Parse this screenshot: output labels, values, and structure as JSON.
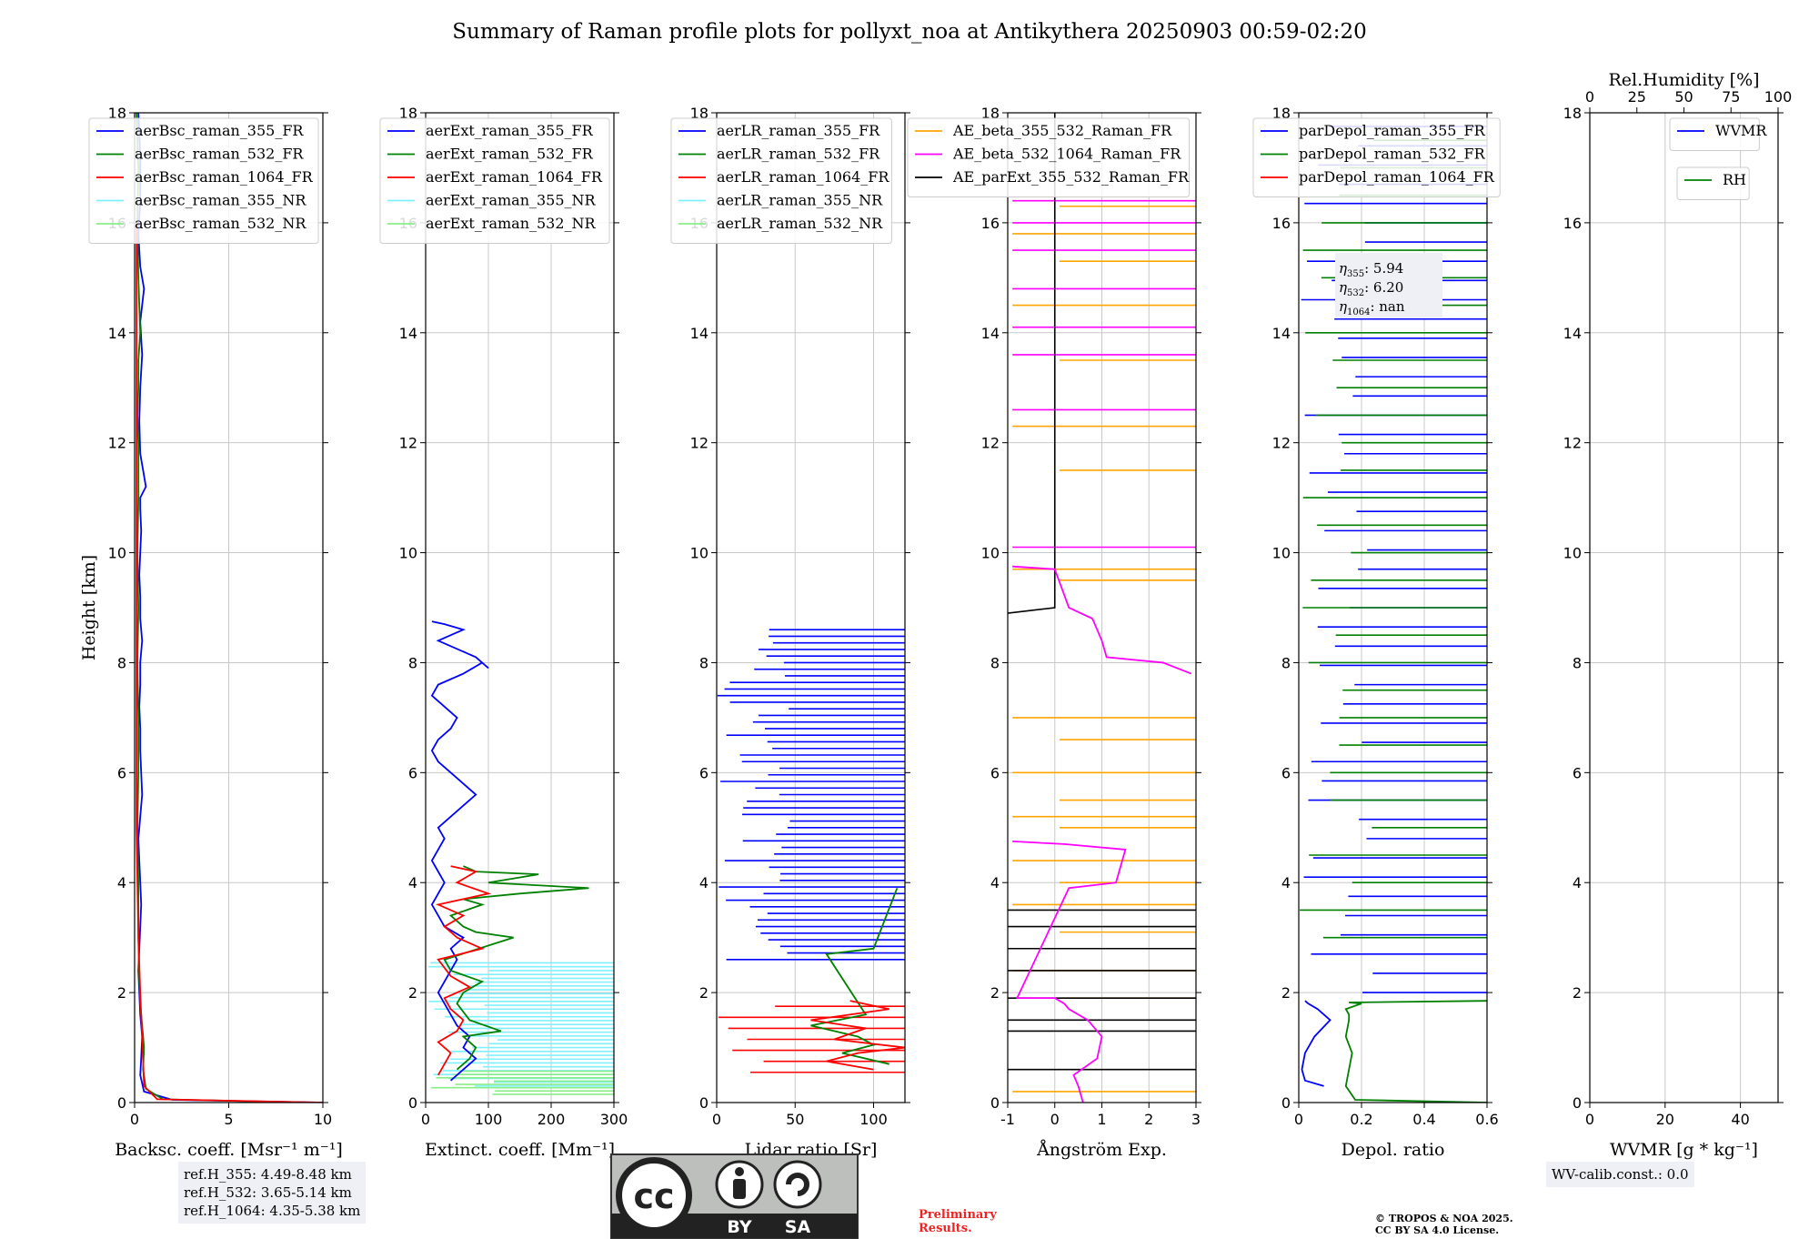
{
  "title": "Summary of Raman profile plots for pollyxt_noa at Antikythera 20250903 00:59-02:20",
  "ylabel": "Height [km]",
  "colors": {
    "blue": "#0000ff",
    "green": "#008000",
    "red": "#ff0000",
    "cyan": "#7ff0ff",
    "lightgreen": "#88ee88",
    "orange": "#ffa500",
    "magenta": "#ff00ff",
    "black": "#000000",
    "grid": "#c8c8c8"
  },
  "ref_heights": [
    "ref.H_355: 4.49-8.48 km",
    "ref.H_532: 3.65-5.14 km",
    "ref.H_1064: 4.35-5.38 km"
  ],
  "depol_annot": [
    {
      "label": "η",
      "sub": "355",
      "value": ": 5.94"
    },
    {
      "label": "η",
      "sub": "532",
      "value": ": 6.20"
    },
    {
      "label": "η",
      "sub": "1064",
      "value": ": nan"
    }
  ],
  "wv_calib": "WV-calib.const.: 0.0",
  "license": {
    "cc": "cc",
    "by": "BY",
    "sa": "SA"
  },
  "preliminary": [
    "Preliminary",
    "Results."
  ],
  "copyright": [
    "© TROPOS & NOA 2025.",
    "CC BY SA 4.0 License."
  ],
  "chart_data": [
    {
      "id": "backscatter",
      "type": "line",
      "xlabel": "Backsc. coeff. [Msr⁻¹ m⁻¹]",
      "xlim": [
        0,
        10
      ],
      "xticks": [
        0,
        5,
        10
      ],
      "ylim": [
        0,
        18
      ],
      "yticks": [
        0,
        2,
        4,
        6,
        8,
        10,
        12,
        14,
        16,
        18
      ],
      "legend": [
        "aerBsc_raman_355_FR",
        "aerBsc_raman_532_FR",
        "aerBsc_raman_1064_FR",
        "aerBsc_raman_355_NR",
        "aerBsc_raman_532_NR"
      ],
      "legend_colors": [
        "blue",
        "green",
        "red",
        "cyan",
        "lightgreen"
      ],
      "series": [
        {
          "name": "aerBsc_raman_355_FR",
          "color": "blue",
          "x": [
            10,
            2.0,
            0.5,
            0.3,
            0.35,
            0.4,
            0.3,
            0.25,
            0.2,
            0.25,
            0.3,
            0.35,
            0.3,
            0.25,
            0.2,
            0.3,
            0.4,
            0.35,
            0.3,
            0.3,
            0.25,
            0.3,
            0.3,
            0.4,
            0.3,
            0.3,
            0.25,
            0.3,
            0.35,
            0.3,
            0.3,
            0.6,
            0.5,
            0.3,
            0.25,
            0.3,
            0.4,
            0.3,
            0.5,
            0.3,
            0.2,
            0.3,
            0.3,
            0.2
          ],
          "y": [
            0.0,
            0.05,
            0.2,
            0.5,
            0.8,
            1.2,
            1.6,
            2.0,
            2.4,
            2.8,
            3.2,
            3.6,
            4.0,
            4.4,
            4.8,
            5.2,
            5.6,
            6.0,
            6.4,
            6.8,
            7.2,
            7.6,
            8.0,
            8.4,
            8.8,
            9.2,
            9.6,
            10.0,
            10.4,
            10.8,
            11.0,
            11.2,
            11.4,
            11.8,
            12.4,
            13.0,
            13.6,
            14.2,
            14.8,
            15.2,
            15.8,
            16.4,
            17.2,
            18.0
          ]
        },
        {
          "name": "aerBsc_raman_532_FR",
          "color": "green",
          "x": [
            9,
            1.5,
            0.6,
            0.45,
            0.5,
            0.4,
            0.3,
            0.25,
            0.2,
            0.2,
            0.15,
            0.2,
            0.2,
            0.15,
            0.2,
            0.15,
            0.2,
            0.2,
            0.15,
            0.2,
            0.2,
            0.3,
            0.2,
            0.15,
            0.2,
            0.1
          ],
          "y": [
            0.0,
            0.06,
            0.25,
            0.6,
            1.0,
            1.4,
            1.8,
            2.2,
            3.0,
            4.0,
            5.0,
            6.0,
            7.0,
            8.0,
            9.0,
            10.0,
            11.0,
            12.0,
            12.5,
            13.0,
            13.5,
            14.0,
            15.0,
            16.0,
            17.0,
            18.0
          ]
        },
        {
          "name": "aerBsc_raman_1064_FR",
          "color": "red",
          "x": [
            10,
            1.2,
            0.5,
            0.45,
            0.4,
            0.35,
            0.3,
            0.2,
            0.15,
            0.1,
            0.1,
            0.1,
            0.1,
            0.1,
            0.1,
            0.1
          ],
          "y": [
            0.0,
            0.06,
            0.3,
            0.8,
            1.2,
            1.6,
            2.0,
            3.0,
            4.0,
            5.0,
            6.0,
            8.0,
            10.0,
            12.0,
            14.0,
            16.0
          ]
        }
      ]
    },
    {
      "id": "extinction",
      "type": "line",
      "xlabel": "Extinct. coeff. [Mm⁻¹]",
      "xlim": [
        0,
        300
      ],
      "xticks": [
        0,
        100,
        200,
        300
      ],
      "ylim": [
        0,
        18
      ],
      "yticks": [
        0,
        2,
        4,
        6,
        8,
        10,
        12,
        14,
        16,
        18
      ],
      "legend": [
        "aerExt_raman_355_FR",
        "aerExt_raman_532_FR",
        "aerExt_raman_1064_FR",
        "aerExt_raman_355_NR",
        "aerExt_raman_532_NR"
      ],
      "legend_colors": [
        "blue",
        "green",
        "red",
        "cyan",
        "lightgreen"
      ],
      "series": [
        {
          "name": "aerExt_raman_355_FR",
          "color": "blue",
          "x": [
            40,
            60,
            80,
            60,
            70,
            50,
            40,
            30,
            20,
            30,
            40,
            50,
            40,
            60,
            30,
            20,
            10,
            20,
            30,
            20,
            10,
            20,
            30,
            20,
            40,
            60,
            80,
            60,
            40,
            20,
            10,
            20,
            40,
            50,
            30,
            10,
            20,
            60,
            90,
            100,
            80,
            60,
            40,
            20,
            40,
            60,
            30,
            10
          ],
          "y": [
            0.4,
            0.6,
            0.8,
            1.0,
            1.2,
            1.4,
            1.6,
            1.8,
            2.0,
            2.2,
            2.4,
            2.6,
            2.8,
            3.0,
            3.2,
            3.4,
            3.6,
            3.8,
            4.0,
            4.2,
            4.4,
            4.6,
            4.8,
            5.0,
            5.2,
            5.4,
            5.6,
            5.8,
            6.0,
            6.2,
            6.4,
            6.6,
            6.8,
            7.0,
            7.2,
            7.4,
            7.6,
            7.8,
            8.0,
            7.9,
            8.1,
            8.2,
            8.3,
            8.4,
            8.5,
            8.6,
            8.7,
            8.75
          ]
        },
        {
          "name": "aerExt_raman_532_FR",
          "color": "green",
          "x": [
            50,
            70,
            80,
            60,
            120,
            70,
            50,
            60,
            90,
            40,
            30,
            140,
            80,
            60,
            40,
            90,
            60,
            150,
            260,
            100,
            180,
            80,
            60
          ],
          "y": [
            0.6,
            0.8,
            1.0,
            1.2,
            1.3,
            1.5,
            1.8,
            2.0,
            2.2,
            2.4,
            2.6,
            3.0,
            3.1,
            3.2,
            3.4,
            3.6,
            3.7,
            3.8,
            3.9,
            4.0,
            4.15,
            4.2,
            4.3
          ]
        },
        {
          "name": "aerExt_raman_1064_FR",
          "color": "red",
          "x": [
            20,
            30,
            40,
            20,
            50,
            60,
            40,
            30,
            70,
            40,
            20,
            90,
            50,
            30,
            60,
            20,
            100,
            50,
            80,
            40
          ],
          "y": [
            0.5,
            0.7,
            0.9,
            1.1,
            1.3,
            1.5,
            1.7,
            1.9,
            2.1,
            2.3,
            2.6,
            2.8,
            3.0,
            3.2,
            3.4,
            3.6,
            3.8,
            4.0,
            4.2,
            4.3
          ]
        }
      ]
    },
    {
      "id": "lidar_ratio",
      "type": "line",
      "xlabel": "Lidar ratio [Sr]",
      "xlim": [
        0,
        120
      ],
      "xticks": [
        0,
        50,
        100
      ],
      "ylim": [
        0,
        18
      ],
      "yticks": [
        0,
        2,
        4,
        6,
        8,
        10,
        12,
        14,
        16,
        18
      ],
      "legend": [
        "aerLR_raman_355_FR",
        "aerLR_raman_532_FR",
        "aerLR_raman_1064_FR",
        "aerLR_raman_355_NR",
        "aerLR_raman_532_NR"
      ],
      "legend_colors": [
        "blue",
        "green",
        "red",
        "cyan",
        "lightgreen"
      ],
      "series": [
        {
          "name": "aerLR_raman_532_FR",
          "color": "green",
          "x": [
            110,
            80,
            100,
            90,
            60,
            95,
            70,
            100,
            115
          ],
          "y": [
            0.7,
            0.9,
            1.05,
            1.2,
            1.4,
            1.6,
            2.7,
            2.8,
            3.9
          ]
        },
        {
          "name": "aerLR_raman_1064_FR",
          "color": "red",
          "x": [
            100,
            70,
            90,
            120,
            75,
            95,
            60,
            110,
            85
          ],
          "y": [
            0.6,
            0.75,
            0.9,
            1.0,
            1.15,
            1.35,
            1.5,
            1.7,
            1.85
          ]
        }
      ]
    },
    {
      "id": "angstrom",
      "type": "line",
      "xlabel": "Ångström Exp.",
      "xlim": [
        -1,
        3
      ],
      "xticks": [
        -1,
        0,
        1,
        2,
        3
      ],
      "ylim": [
        0,
        18
      ],
      "yticks": [
        0,
        2,
        4,
        6,
        8,
        10,
        12,
        14,
        16,
        18
      ],
      "legend": [
        "AE_beta_355_532_Raman_FR",
        "AE_beta_532_1064_Raman_FR",
        "AE_parExt_355_532_Raman_FR"
      ],
      "legend_colors": [
        "orange",
        "magenta",
        "black"
      ],
      "series": [
        {
          "name": "AE_beta_532_1064_Raman_FR",
          "color": "magenta",
          "x": [
            0.6,
            0.5,
            0.4,
            0.9,
            1.0,
            0.7,
            0.3,
            0.2,
            0.0,
            -0.8,
            0.3,
            1.3,
            1.4,
            1.5,
            0.2,
            -0.9
          ],
          "y": [
            0.0,
            0.3,
            0.5,
            0.8,
            1.2,
            1.5,
            1.7,
            1.8,
            1.9,
            1.9,
            3.9,
            4.0,
            4.3,
            4.6,
            4.7,
            4.75
          ]
        },
        {
          "name": "AE_beta_532_1064_Raman_FR",
          "color": "magenta",
          "x": [
            2.9,
            2.3,
            1.1,
            1.0,
            0.9,
            0.8,
            0.3,
            0.0,
            -0.9
          ],
          "y": [
            7.8,
            8.0,
            8.1,
            8.4,
            8.6,
            8.8,
            9.0,
            9.7,
            9.75
          ]
        }
      ]
    },
    {
      "id": "depol",
      "type": "line",
      "xlabel": "Depol. ratio",
      "xlim": [
        0,
        0.6
      ],
      "xticks": [
        0.0,
        0.2,
        0.4,
        0.6
      ],
      "ylim": [
        0,
        18
      ],
      "yticks": [
        0,
        2,
        4,
        6,
        8,
        10,
        12,
        14,
        16,
        18
      ],
      "legend": [
        "parDepol_raman_355_FR",
        "parDepol_raman_532_FR",
        "parDepol_raman_1064_FR"
      ],
      "legend_colors": [
        "blue",
        "green",
        "red"
      ],
      "series": [
        {
          "name": "parDepol_raman_532_FR",
          "color": "green",
          "x": [
            0.6,
            0.18,
            0.15,
            0.16,
            0.17,
            0.15,
            0.16,
            0.16,
            0.15,
            0.2,
            0.16,
            0.6
          ],
          "y": [
            0.0,
            0.05,
            0.3,
            0.6,
            0.9,
            1.2,
            1.5,
            1.6,
            1.7,
            1.8,
            1.82,
            1.85
          ]
        },
        {
          "name": "parDepol_raman_355_FR",
          "color": "blue",
          "x": [
            0.08,
            0.02,
            0.01,
            0.02,
            0.05,
            0.1,
            0.06,
            0.03,
            0.02
          ],
          "y": [
            0.3,
            0.4,
            0.6,
            0.9,
            1.2,
            1.5,
            1.7,
            1.8,
            1.85
          ]
        }
      ]
    },
    {
      "id": "wvmr",
      "type": "line",
      "xlabel": "WVMR [g * kg⁻¹]",
      "xlim": [
        0,
        50
      ],
      "xticks": [
        0,
        20,
        40
      ],
      "ylim": [
        0,
        18
      ],
      "yticks": [
        0,
        2,
        4,
        6,
        8,
        10,
        12,
        14,
        16,
        18
      ],
      "top_xlabel": "Rel.Humidity [%]",
      "top_xticks": [
        0,
        25,
        50,
        75,
        100
      ],
      "legend": [
        "WVMR"
      ],
      "legend_colors": [
        "blue"
      ],
      "legend2": [
        "RH"
      ],
      "legend2_colors": [
        "green"
      ],
      "series": []
    }
  ]
}
